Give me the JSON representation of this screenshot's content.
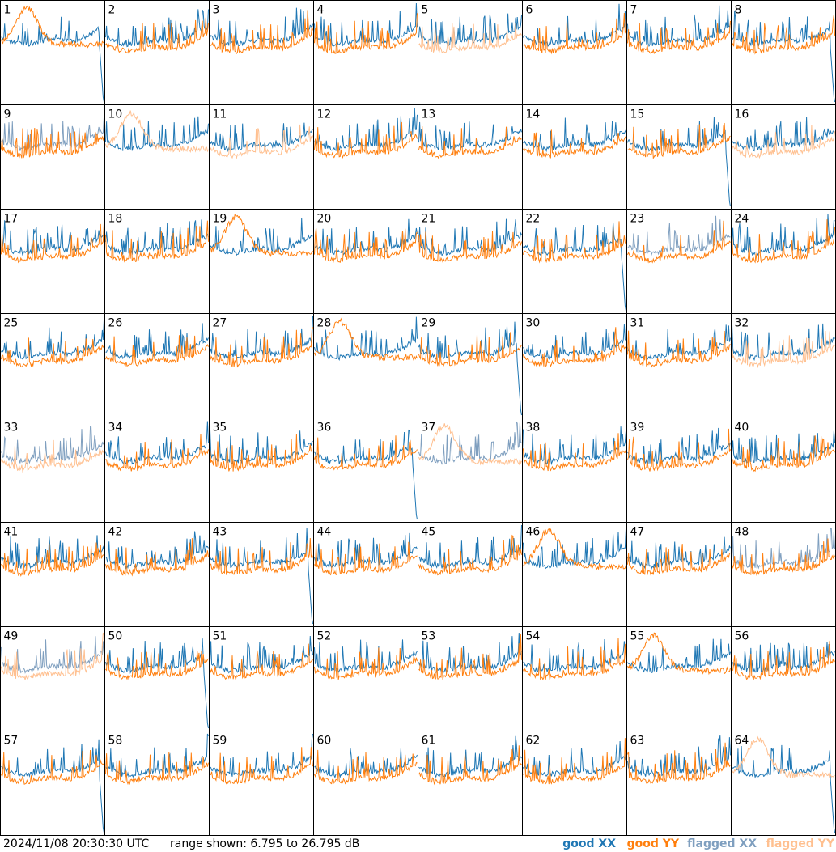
{
  "chart_data": {
    "type": "line",
    "panels": [
      "1",
      "2",
      "3",
      "4",
      "5",
      "6",
      "7",
      "8",
      "9",
      "10",
      "11",
      "12",
      "13",
      "14",
      "15",
      "16",
      "17",
      "18",
      "19",
      "20",
      "21",
      "22",
      "23",
      "24",
      "25",
      "26",
      "27",
      "28",
      "29",
      "30",
      "31",
      "32",
      "33",
      "34",
      "35",
      "36",
      "37",
      "38",
      "39",
      "40",
      "41",
      "42",
      "43",
      "44",
      "45",
      "46",
      "47",
      "48",
      "49",
      "50",
      "51",
      "52",
      "53",
      "54",
      "55",
      "56",
      "57",
      "58",
      "59",
      "60",
      "61",
      "62",
      "63",
      "64"
    ],
    "panel_status": {
      "flagged_xx": [
        "9",
        "23",
        "33",
        "37",
        "48",
        "49"
      ],
      "flagged_yy": [
        "5",
        "10",
        "11",
        "16",
        "32",
        "33",
        "37",
        "49",
        "64"
      ]
    },
    "ylim": [
      6.795,
      26.795
    ],
    "legend_position": "bottom-right",
    "series": [
      {
        "name": "good XX",
        "color": "#1f77b4"
      },
      {
        "name": "good YY",
        "color": "#ff7f0e"
      },
      {
        "name": "flagged XX",
        "color": "#7f9fbf"
      },
      {
        "name": "flagged YY",
        "color": "#ffc090"
      }
    ]
  },
  "footer": {
    "timestamp": "2024/11/08 20:30:30 UTC",
    "range_text": "range shown: 6.795 to 26.795 dB"
  }
}
